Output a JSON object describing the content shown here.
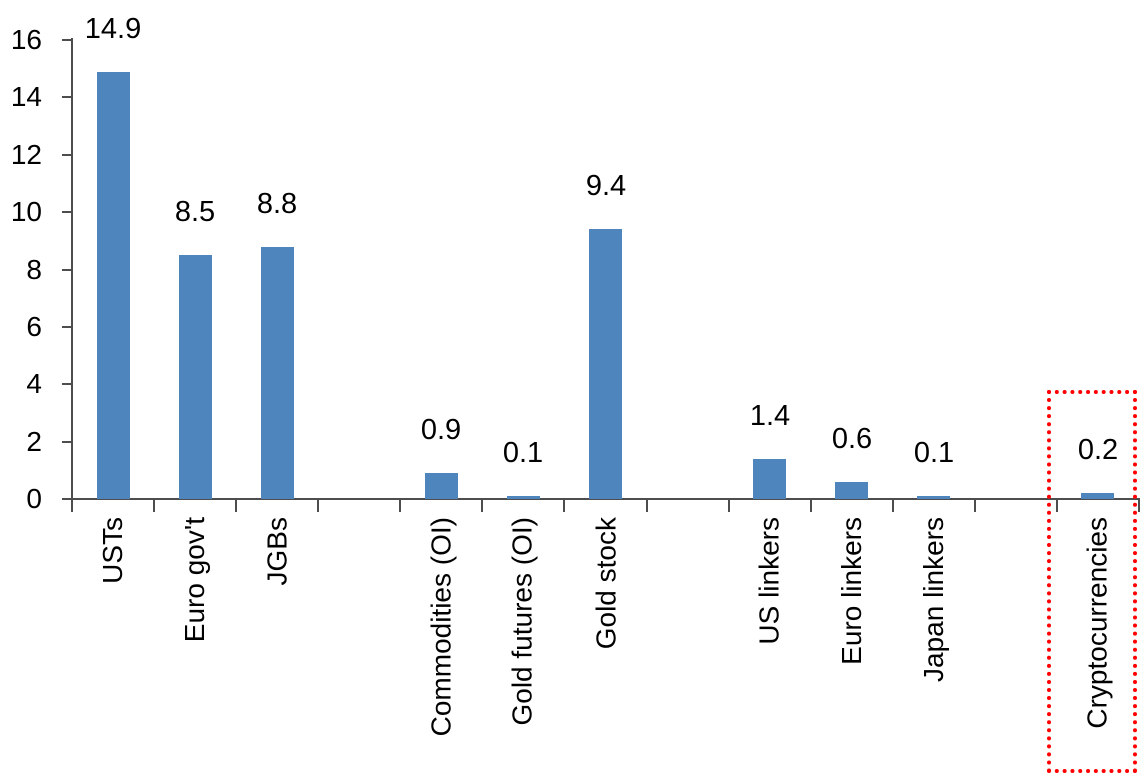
{
  "chart_data": {
    "type": "bar",
    "title": "",
    "xlabel": "",
    "ylabel": "",
    "ylim": [
      0,
      16
    ],
    "y_ticks": [
      0,
      2,
      4,
      6,
      8,
      10,
      12,
      14,
      16
    ],
    "grid": "off",
    "legend": "none",
    "categories": [
      "USTs",
      "Euro gov't",
      "JGBs",
      "",
      "Commodities (OI)",
      "Gold futures (OI)",
      "Gold stock",
      "",
      "US linkers",
      "Euro linkers",
      "Japan linkers",
      "",
      "Cryptocurrencies"
    ],
    "values": [
      14.9,
      8.5,
      8.8,
      null,
      0.9,
      0.1,
      9.4,
      null,
      1.4,
      0.6,
      0.1,
      null,
      0.2
    ],
    "bar_labels": [
      "14.9",
      "8.5",
      "8.8",
      null,
      "0.9",
      "0.1",
      "9.4",
      null,
      "1.4",
      "0.6",
      "0.1",
      null,
      "0.2"
    ],
    "bar_color": "#4F85BD",
    "axis_color": "#4D4D4D",
    "text_color": "#000000",
    "highlight_box": {
      "target_category": "Cryptocurrencies",
      "border_color": "#FF0000",
      "border_style": "dotted"
    }
  }
}
